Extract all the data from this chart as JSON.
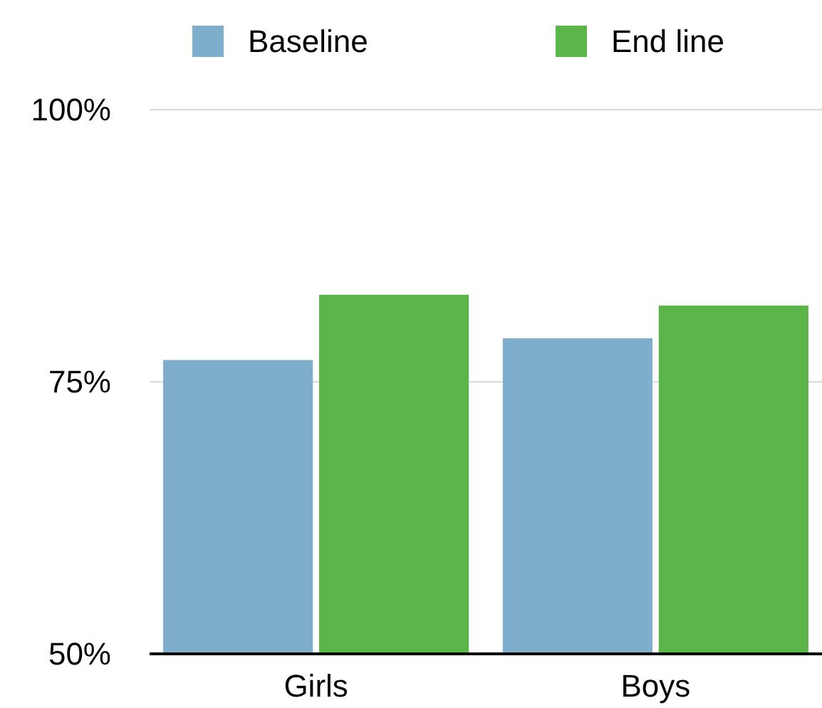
{
  "chart_data": {
    "type": "bar",
    "categories": [
      "Girls",
      "Boys"
    ],
    "series": [
      {
        "name": "Baseline",
        "color": "#7fadcc",
        "values": [
          77,
          79
        ]
      },
      {
        "name": "End line",
        "color": "#5cb548",
        "values": [
          83,
          82
        ]
      }
    ],
    "ylim": [
      50,
      100
    ],
    "yticks": [
      {
        "value": 50,
        "label": "50%"
      },
      {
        "value": 75,
        "label": "75%"
      },
      {
        "value": 100,
        "label": "100%"
      }
    ],
    "grid": "y",
    "legend": "top"
  }
}
